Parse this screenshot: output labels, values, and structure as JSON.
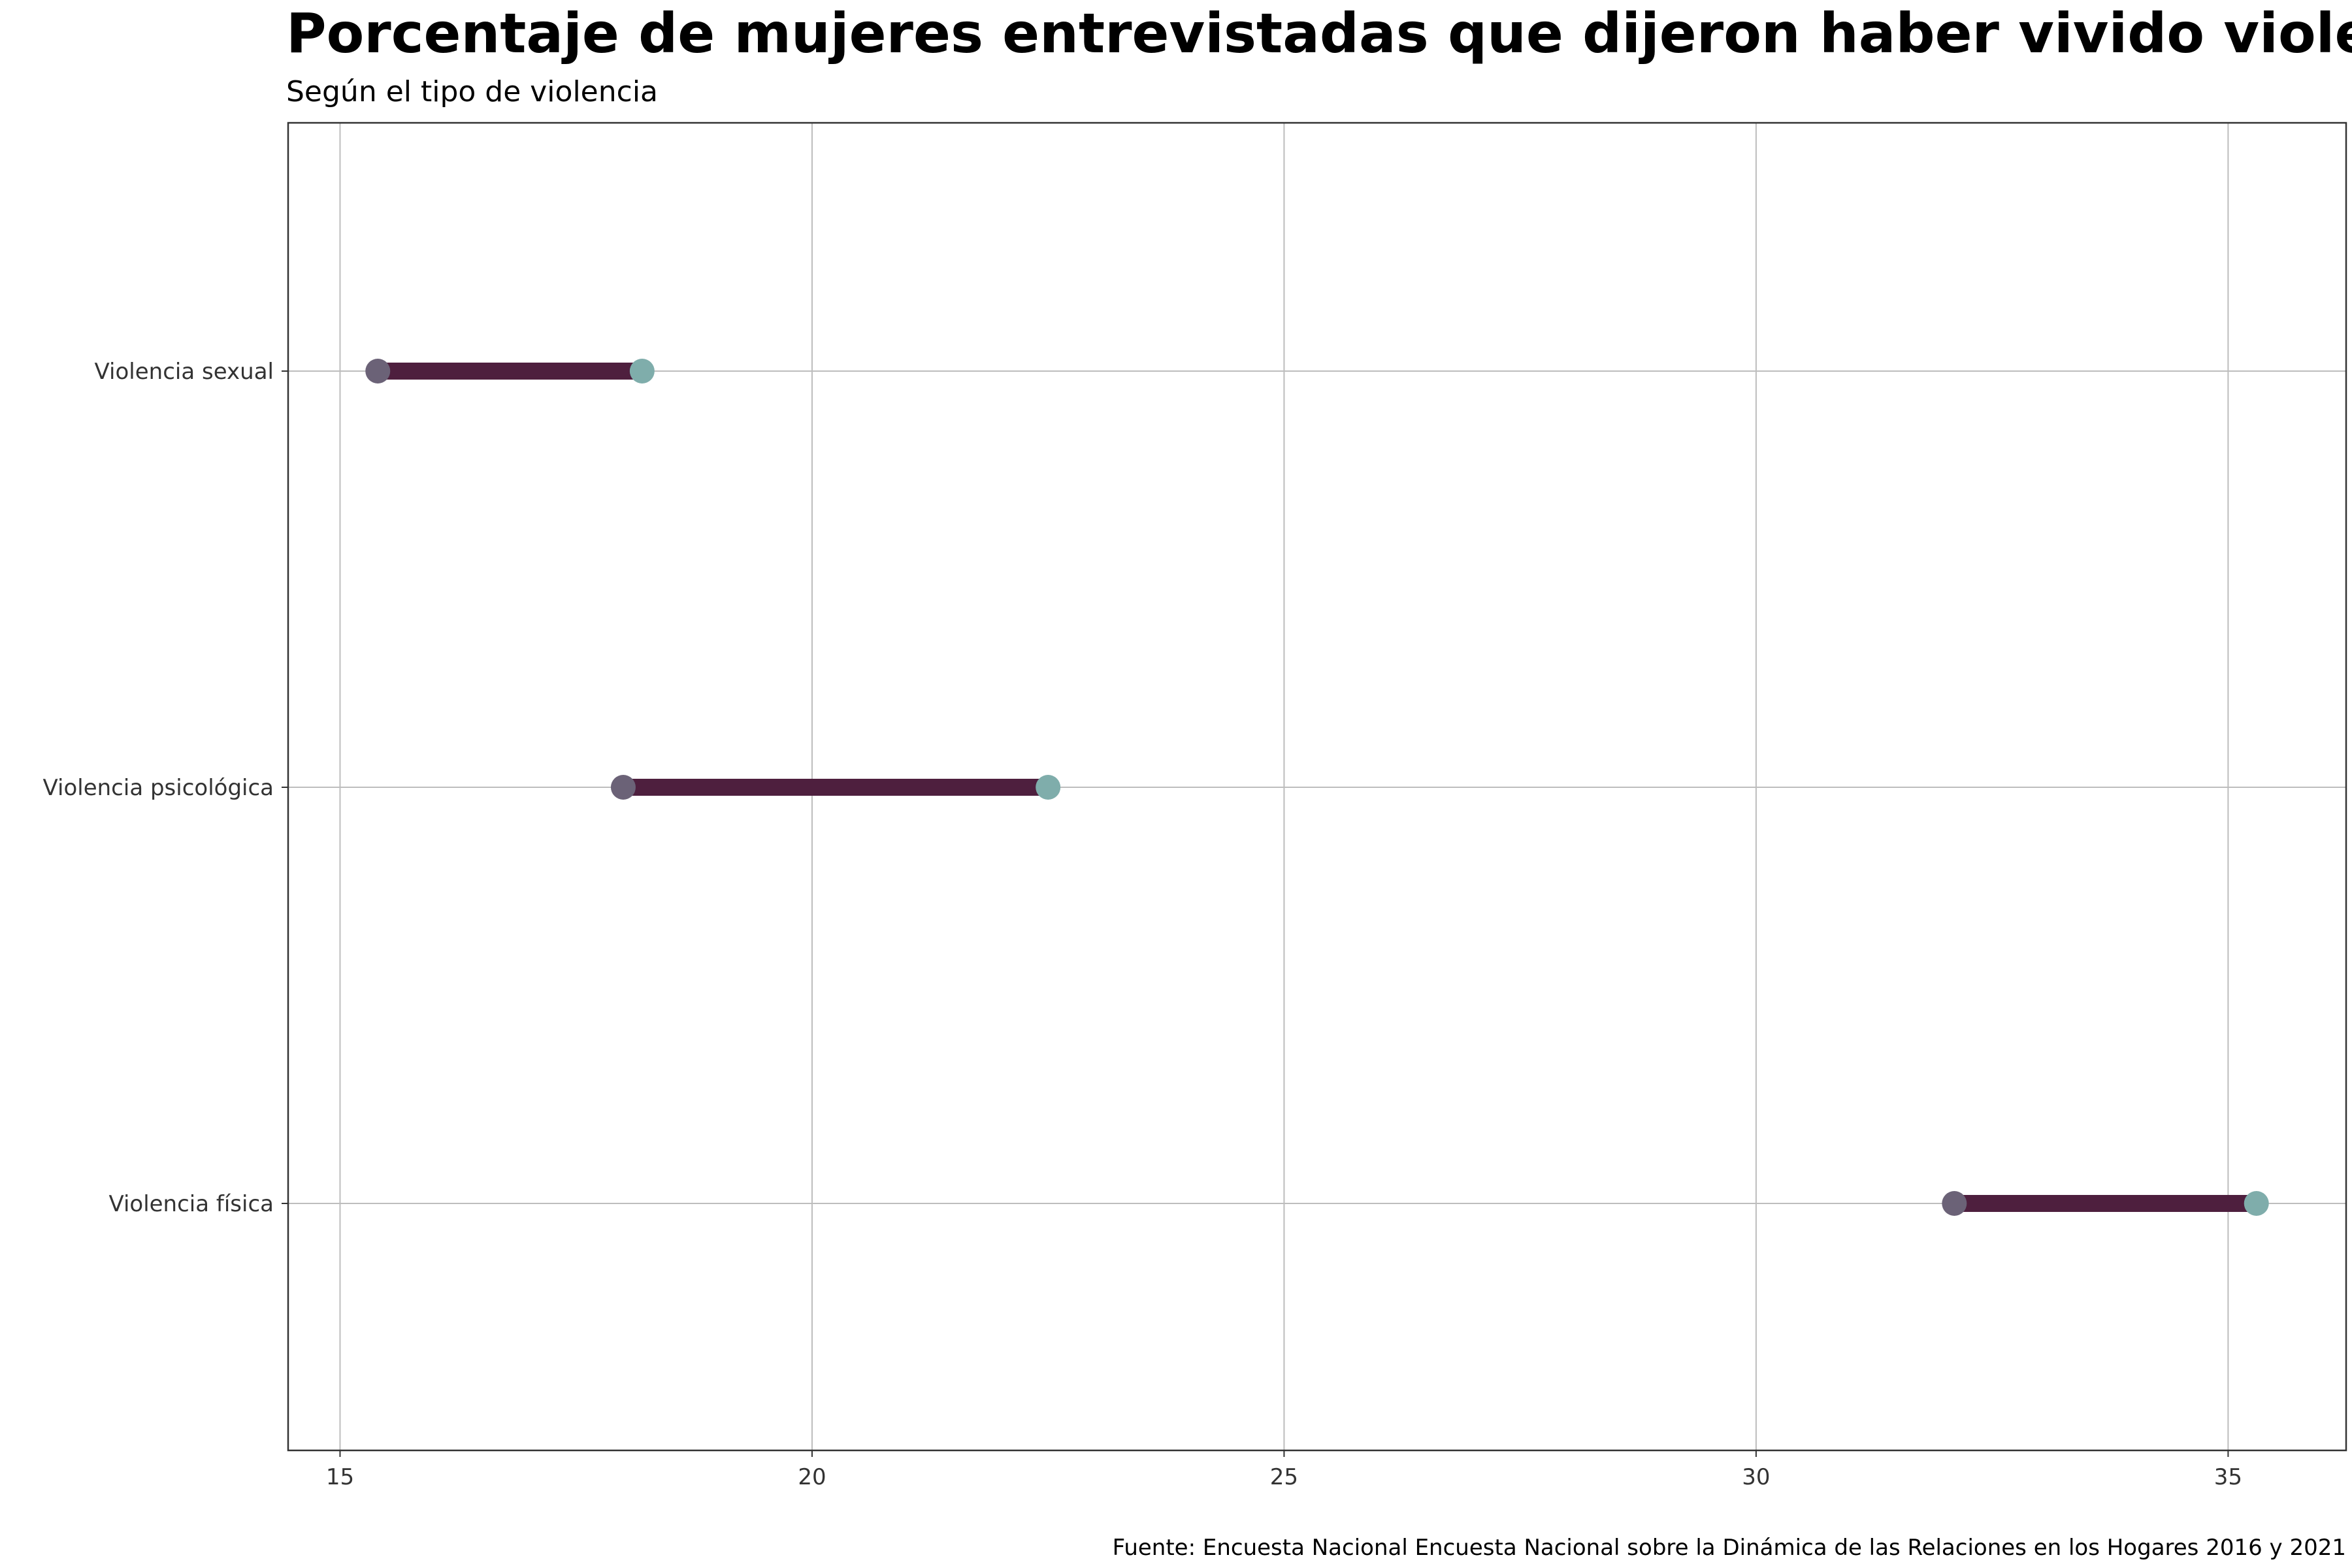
{
  "chart_data": {
    "type": "dumbbell",
    "title": "Porcentaje de mujeres entrevistadas que dijeron haber vivido violencia durante",
    "subtitle": "Según el tipo de violencia",
    "caption": "Fuente: Encuesta Nacional Encuesta Nacional sobre la Dinámica de las Relaciones en los Hogares 2016 y 2021",
    "xlim": [
      14.45,
      36.25
    ],
    "x_ticks": [
      15,
      20,
      25,
      30,
      35
    ],
    "x_tick_labels": [
      "15",
      "20",
      "25",
      "30",
      "35"
    ],
    "categories": [
      "Violencia sexual",
      "Violencia psicológica",
      "Violencia física"
    ],
    "series": [
      {
        "values": [
          15.4,
          18.0,
          32.1
        ],
        "color": "#6b6277"
      },
      {
        "values": [
          18.2,
          22.5,
          35.3
        ],
        "color": "#7fadab"
      }
    ],
    "segment_color": "#4e1f3e",
    "grid": true
  }
}
